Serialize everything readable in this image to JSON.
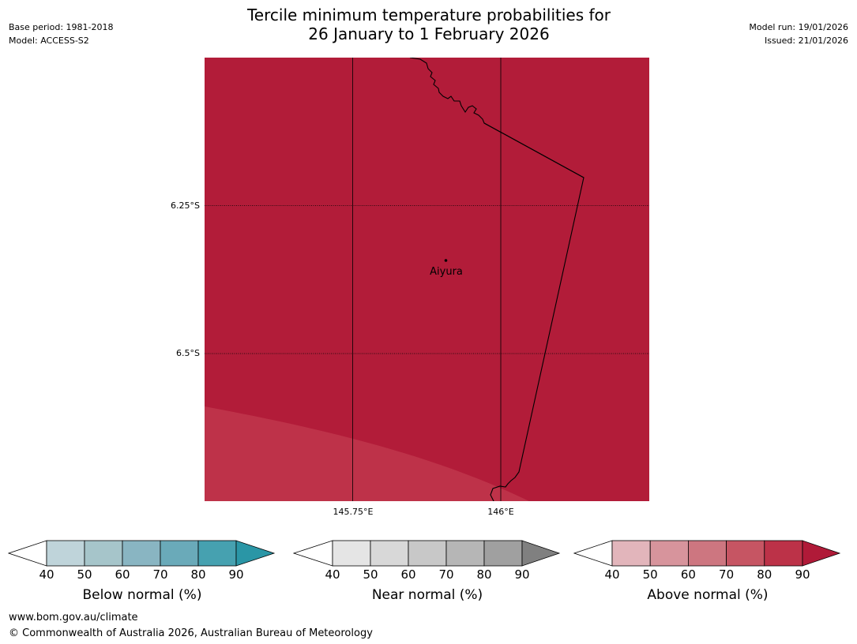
{
  "header": {
    "title_line1": "Tercile minimum temperature probabilities for",
    "title_line2": "26 January to 1 February 2026",
    "base_period": "Base period: 1981-2018",
    "model": "Model: ACCESS-S2",
    "model_run": "Model run: 19/01/2026",
    "issued": "Issued: 21/01/2026"
  },
  "map": {
    "lat_labels": [
      "6.25°S",
      "6.5°S"
    ],
    "lon_labels": [
      "145.75°E",
      "146°E"
    ],
    "place": {
      "name": "Aiyura"
    },
    "colors": {
      "main_fill": "#b21c39",
      "secondary_fill": "#be3249",
      "boundary": "#000000",
      "grid": "#000000"
    }
  },
  "legend": {
    "tick_values": [
      "40",
      "50",
      "60",
      "70",
      "80",
      "90"
    ],
    "scales": [
      {
        "label": "Below normal (%)",
        "colors": [
          "#bfd4da",
          "#a6c5ca",
          "#89b5c2",
          "#6aaab9",
          "#46a1b0",
          "#2a96a6"
        ]
      },
      {
        "label": "Near normal (%)",
        "colors": [
          "#e5e5e5",
          "#d8d8d8",
          "#c8c8c8",
          "#b6b6b6",
          "#a0a0a0",
          "#808080"
        ]
      },
      {
        "label": "Above normal (%)",
        "colors": [
          "#e2b5bb",
          "#d7949c",
          "#cd7680",
          "#c65563",
          "#bc3248",
          "#b01a38"
        ]
      }
    ]
  },
  "footer": {
    "url": "www.bom.gov.au/climate",
    "copyright": "© Commonwealth of Australia 2026, Australian Bureau of Meteorology"
  }
}
